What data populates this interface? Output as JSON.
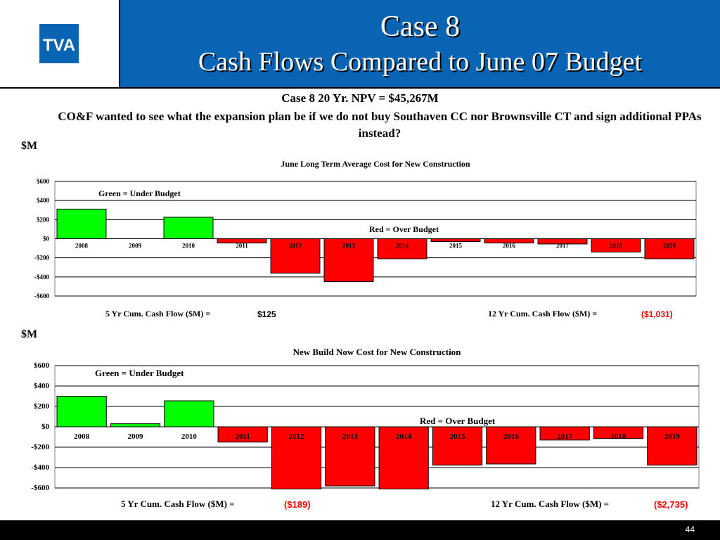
{
  "logo_text": "TVA",
  "title": {
    "line1": "Case 8",
    "line2": "Cash Flows Compared to June 07 Budget"
  },
  "subtitle": {
    "case_line": "Case 8   20 Yr. NPV = $45,267M",
    "question": "CO&F wanted to see what the expansion plan be if we do not buy Southaven CC nor Brownsville CT and sign additional PPAs instead?"
  },
  "units": [
    "$M",
    "$M"
  ],
  "page_number": "44",
  "colors": {
    "under_budget": "#00ff00",
    "over_budget": "#ff0000",
    "title_bar": "#0a64b4",
    "negative_value_text": "#ff0000"
  },
  "chart_data": [
    {
      "type": "bar",
      "title": "June Long Term Average Cost for New Construction",
      "categories": [
        "2008",
        "2009",
        "2010",
        "2011",
        "2012",
        "2013",
        "2014",
        "2015",
        "2016",
        "2017",
        "2018",
        "2019"
      ],
      "values": [
        310,
        0,
        225,
        -45,
        -360,
        -450,
        -210,
        -30,
        -45,
        -55,
        -140,
        -210
      ],
      "ylim": [
        -600,
        600
      ],
      "yticks": [
        "$600",
        "$400",
        "$200",
        "$0",
        "-$200",
        "-$400",
        "-$600"
      ],
      "grid": true,
      "annotations": {
        "green": "Green = Under Budget",
        "red": "Red = Over Budget"
      },
      "summary": {
        "five_year_label": "5 Yr Cum. Cash Flow ($M) =",
        "five_year_value": "$125",
        "twelve_year_label": "12 Yr Cum. Cash Flow ($M) =",
        "twelve_year_value": "($1,031)"
      }
    },
    {
      "type": "bar",
      "title": "New Build Now Cost for New Construction",
      "categories": [
        "2008",
        "2009",
        "2010",
        "2011",
        "2012",
        "2013",
        "2014",
        "2015",
        "2016",
        "2017",
        "2018",
        "2019"
      ],
      "values": [
        300,
        30,
        255,
        -150,
        -610,
        -580,
        -610,
        -375,
        -365,
        -130,
        -115,
        -375
      ],
      "ylim": [
        -600,
        600
      ],
      "yticks": [
        "$600",
        "$400",
        "$200",
        "$0",
        "-$200",
        "-$400",
        "-$600"
      ],
      "grid": true,
      "annotations": {
        "green": "Green = Under Budget",
        "red": "Red = Over Budget"
      },
      "summary": {
        "five_year_label": "5 Yr Cum. Cash Flow ($M) =",
        "five_year_value": "($189)",
        "twelve_year_label": "12 Yr Cum. Cash Flow ($M) =",
        "twelve_year_value": "($2,735)"
      }
    }
  ]
}
